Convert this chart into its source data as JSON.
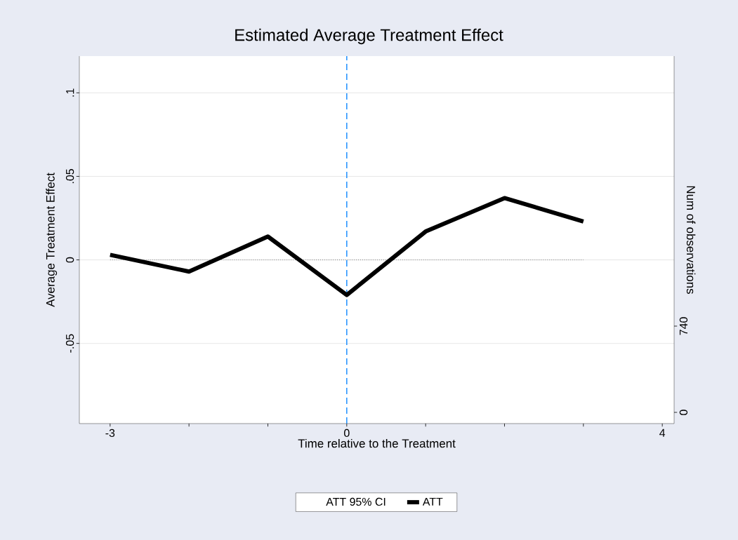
{
  "chart_data": {
    "type": "line",
    "title": "Estimated Average Treatment Effect",
    "xlabel": "Time relative to the Treatment",
    "ylabel": "Average Treatment Effect",
    "y2label": "Num of observations",
    "x": [
      -3,
      -2,
      -1,
      0,
      1,
      2,
      3
    ],
    "series": [
      {
        "name": "ATT 95% CI",
        "values": [
          null,
          null,
          null,
          null,
          null,
          null,
          null
        ]
      },
      {
        "name": "ATT",
        "color": "#000000",
        "values": [
          0.003,
          -0.007,
          0.014,
          -0.021,
          0.017,
          0.037,
          0.023
        ]
      },
      {
        "color": "#7f7f7f",
        "line_style": "dotted",
        "values": [
          0,
          0,
          0,
          0,
          0,
          0,
          0
        ]
      }
    ],
    "xlim": [
      -3.39,
      4.15
    ],
    "ylim": [
      -0.098,
      0.122
    ],
    "y2lim": [
      -96,
      3056
    ],
    "xticks": [
      -3,
      {
        "value": -2,
        "label": null
      },
      {
        "value": -1,
        "label": null
      },
      0,
      {
        "value": 1,
        "label": null
      },
      {
        "value": 2,
        "label": null
      },
      {
        "value": 3,
        "label": null
      },
      4
    ],
    "yticks": [
      {
        "value": -0.05,
        "label": "-.05"
      },
      0,
      {
        "value": 0.05,
        "label": ".05"
      },
      {
        "value": 0.1,
        "label": ".1"
      }
    ],
    "y2ticks": [
      0,
      740
    ],
    "ref_lines": [
      {
        "axis": "x",
        "value": 0,
        "color": "#1e90ff",
        "line_style": "dashed"
      }
    ],
    "grid": "y",
    "legend": "bottom",
    "line_style": "solid",
    "marker": "none"
  }
}
